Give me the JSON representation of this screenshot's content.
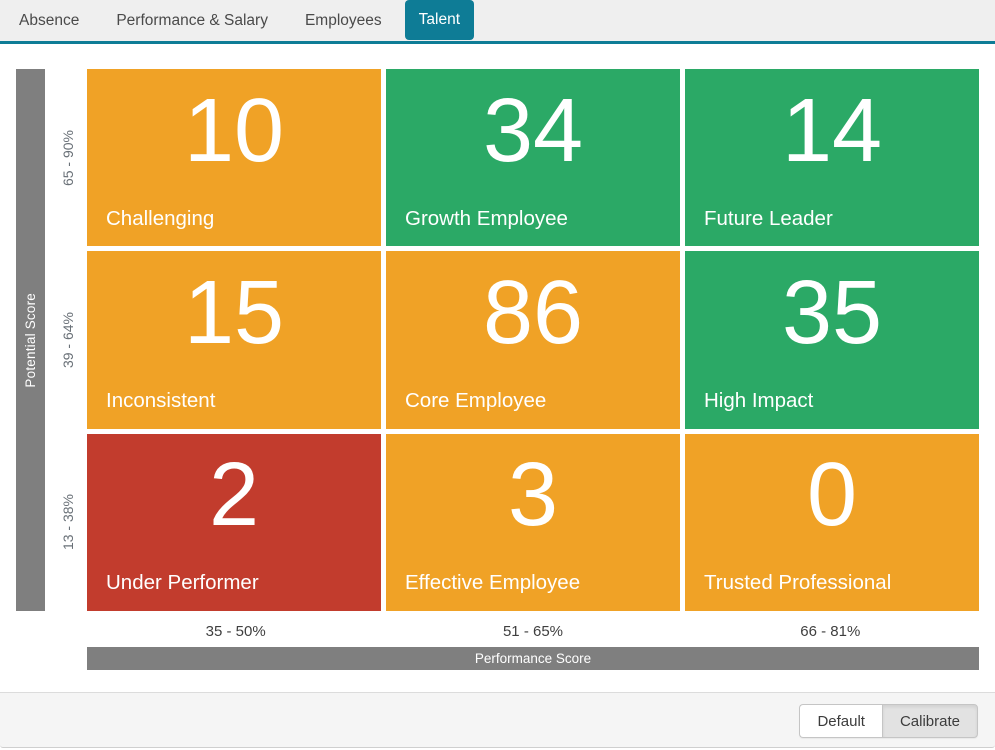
{
  "theme": {
    "colors": {
      "orange": "#f0a226",
      "green": "#2ba966",
      "red": "#c23c2d",
      "teal": "#0e7c96",
      "axis_gray": "#7f7f7f"
    }
  },
  "tabs": [
    {
      "label": "Absence",
      "active": false
    },
    {
      "label": "Performance & Salary",
      "active": false
    },
    {
      "label": "Employees",
      "active": false
    },
    {
      "label": "Talent",
      "active": true
    }
  ],
  "matrix": {
    "y_axis": {
      "title": "Potential Score",
      "ranges": [
        "65 - 90%",
        "39 - 64%",
        "13 - 38%"
      ]
    },
    "x_axis": {
      "title": "Performance Score",
      "ranges": [
        "35 - 50%",
        "51 - 65%",
        "66 - 81%"
      ]
    },
    "cells": [
      {
        "value": "10",
        "label": "Challenging",
        "color": "orange"
      },
      {
        "value": "34",
        "label": "Growth Employee",
        "color": "green"
      },
      {
        "value": "14",
        "label": "Future Leader",
        "color": "green"
      },
      {
        "value": "15",
        "label": "Inconsistent",
        "color": "orange"
      },
      {
        "value": "86",
        "label": "Core Employee",
        "color": "orange"
      },
      {
        "value": "35",
        "label": "High Impact",
        "color": "green"
      },
      {
        "value": "2",
        "label": "Under Performer",
        "color": "red"
      },
      {
        "value": "3",
        "label": "Effective Employee",
        "color": "orange"
      },
      {
        "value": "0",
        "label": "Trusted Professional",
        "color": "orange"
      }
    ]
  },
  "footer": {
    "buttons": [
      {
        "label": "Default",
        "pressed": false
      },
      {
        "label": "Calibrate",
        "pressed": true
      }
    ]
  }
}
